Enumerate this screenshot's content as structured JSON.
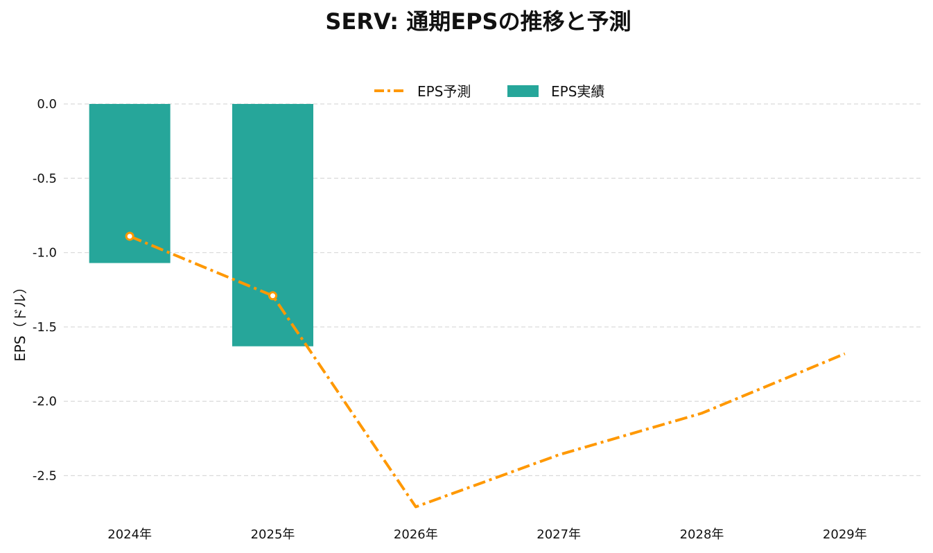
{
  "chart_data": {
    "type": "bar",
    "title": "SERV: 通期EPSの推移と予測",
    "xlabel": "",
    "ylabel": "EPS（ドル）",
    "categories": [
      "2024年",
      "2025年",
      "2026年",
      "2027年",
      "2028年",
      "2029年"
    ],
    "ylim": [
      -2.75,
      0.0
    ],
    "yticks": [
      0.0,
      -0.5,
      -1.0,
      -1.5,
      -2.0,
      -2.5
    ],
    "ytick_labels": [
      "0.0",
      "-0.5",
      "-1.0",
      "-1.5",
      "-2.0",
      "-2.5"
    ],
    "grid": true,
    "legend_position": "top-center",
    "series": [
      {
        "name": "EPS予測",
        "kind": "line",
        "style": "dash-dot",
        "color": "#FF9800",
        "values": [
          -0.89,
          -1.29,
          -2.71,
          -2.36,
          -2.08,
          -1.68
        ],
        "highlighted_points": [
          0,
          1
        ]
      },
      {
        "name": "EPS実績",
        "kind": "bar",
        "color": "#26A69A",
        "values": [
          -1.07,
          -1.63,
          null,
          null,
          null,
          null
        ]
      }
    ]
  }
}
